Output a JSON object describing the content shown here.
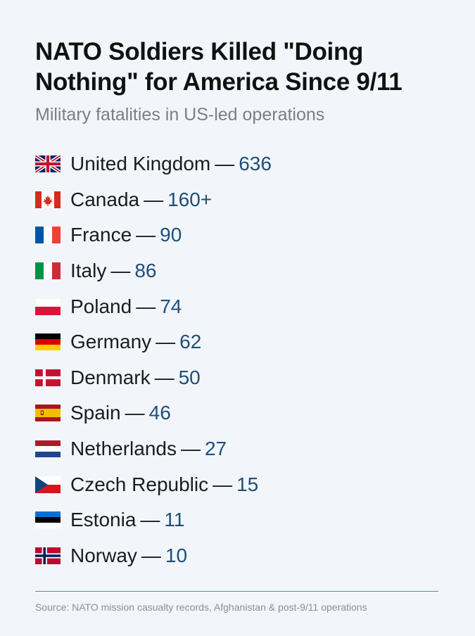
{
  "title": "NATO Soldiers Killed \"Doing Nothing\" for America Since 9/11",
  "subtitle": "Military fatalities in US-led operations",
  "separator": "—",
  "countries": [
    {
      "name": "United Kingdom",
      "value": "636",
      "flag": "uk-flag-icon"
    },
    {
      "name": "Canada",
      "value": "160+",
      "flag": "canada-flag-icon"
    },
    {
      "name": "France",
      "value": "90",
      "flag": "france-flag-icon"
    },
    {
      "name": "Italy",
      "value": "86",
      "flag": "italy-flag-icon"
    },
    {
      "name": "Poland",
      "value": "74",
      "flag": "poland-flag-icon"
    },
    {
      "name": "Germany",
      "value": "62",
      "flag": "germany-flag-icon"
    },
    {
      "name": "Denmark",
      "value": "50",
      "flag": "denmark-flag-icon"
    },
    {
      "name": "Spain",
      "value": "46",
      "flag": "spain-flag-icon"
    },
    {
      "name": "Netherlands",
      "value": "27",
      "flag": "netherlands-flag-icon"
    },
    {
      "name": "Czech Republic",
      "value": "15",
      "flag": "czech-flag-icon"
    },
    {
      "name": "Estonia",
      "value": "11",
      "flag": "estonia-flag-icon"
    },
    {
      "name": "Norway",
      "value": "10",
      "flag": "norway-flag-icon"
    }
  ],
  "source": "Source: NATO mission casualty records, Afghanistan & post-9/11 operations",
  "colors": {
    "value": "#1f4e79",
    "rule": "#5d8aa8",
    "background": "#f2f6fa"
  }
}
